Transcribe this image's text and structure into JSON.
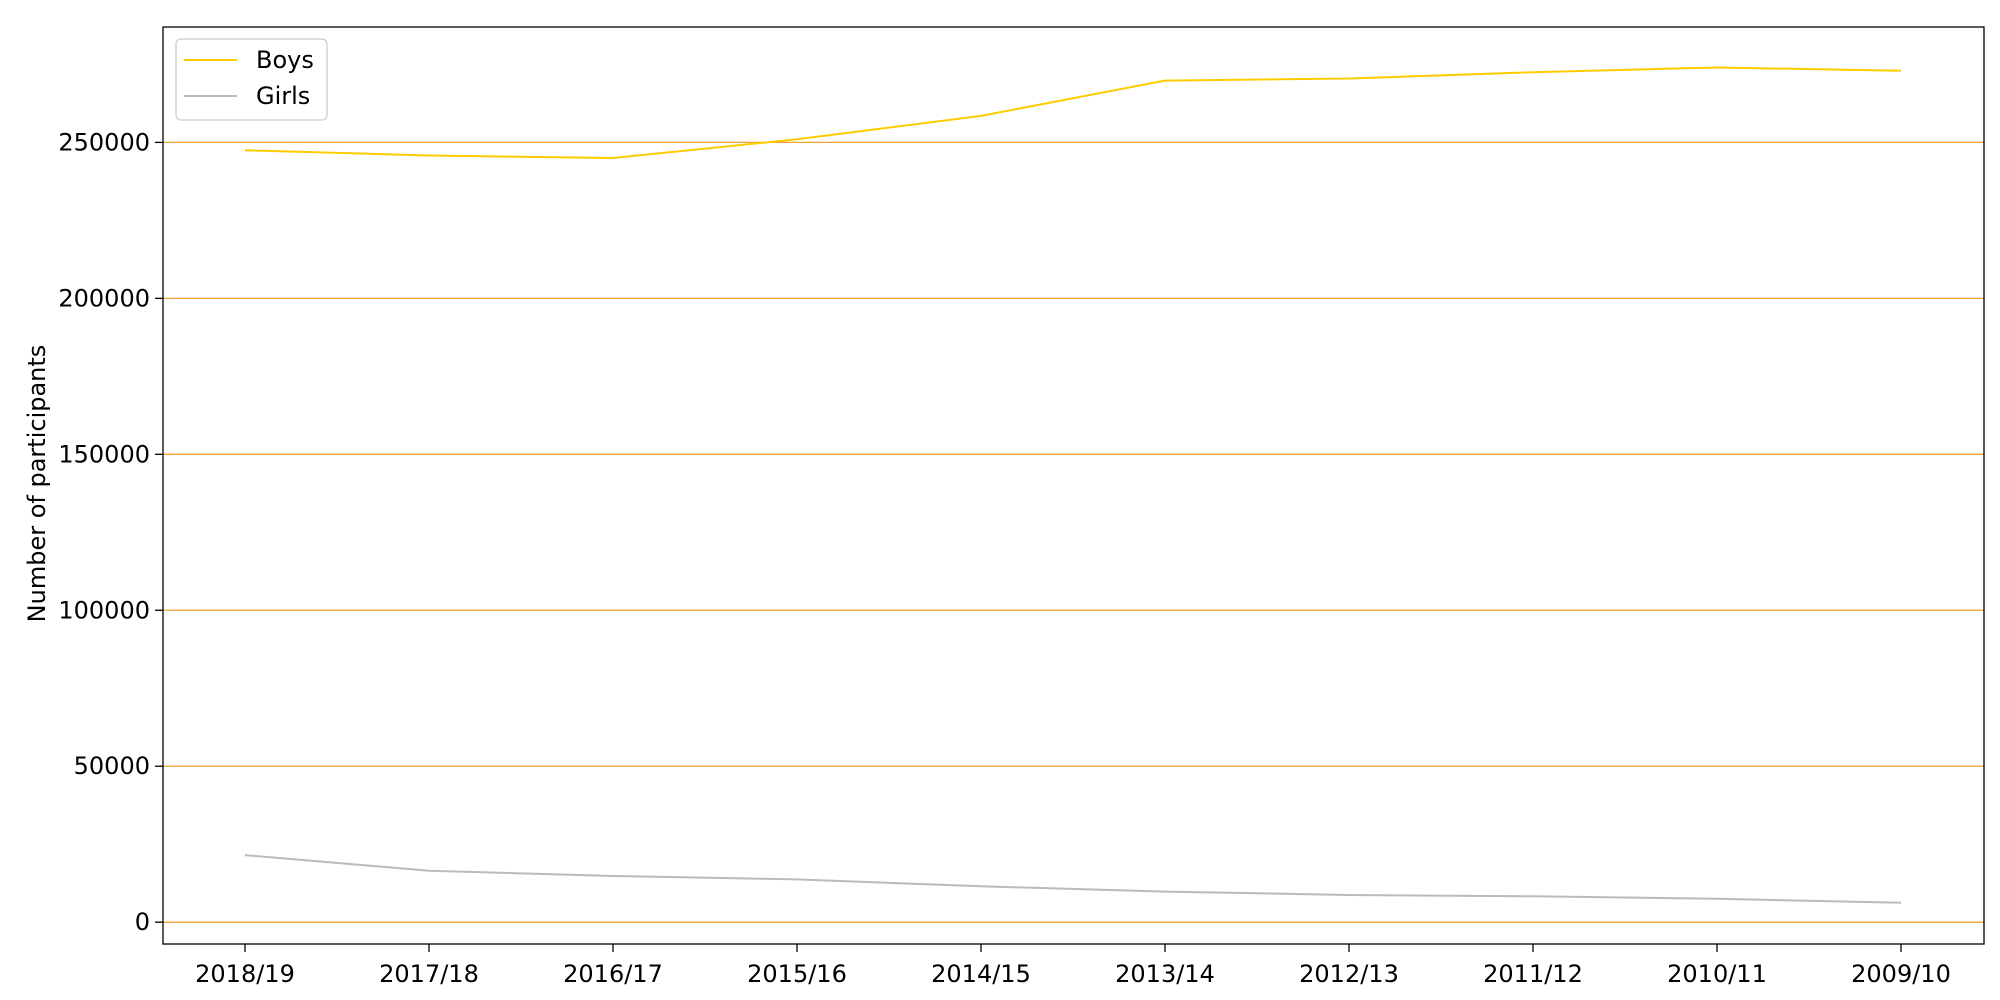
{
  "chart_data": {
    "type": "line",
    "categories": [
      "2018/19",
      "2017/18",
      "2016/17",
      "2015/16",
      "2014/15",
      "2013/14",
      "2012/13",
      "2011/12",
      "2010/11",
      "2009/10"
    ],
    "series": [
      {
        "name": "Boys",
        "color": "#ffcc00",
        "values": [
          247500,
          245800,
          245000,
          251000,
          258500,
          269800,
          270500,
          272500,
          274000,
          273000
        ]
      },
      {
        "name": "Girls",
        "color": "#bbbbbb",
        "values": [
          21500,
          16500,
          14800,
          13700,
          11500,
          9800,
          8700,
          8300,
          7500,
          6200
        ]
      }
    ],
    "xlabel": "",
    "ylabel": "Number of participants",
    "ylim": [
      -7000,
      287000
    ],
    "yticks": [
      0,
      50000,
      100000,
      150000,
      200000,
      250000
    ],
    "grid": {
      "axis": "y",
      "color": "#f0a030"
    },
    "legend": "top-left"
  }
}
